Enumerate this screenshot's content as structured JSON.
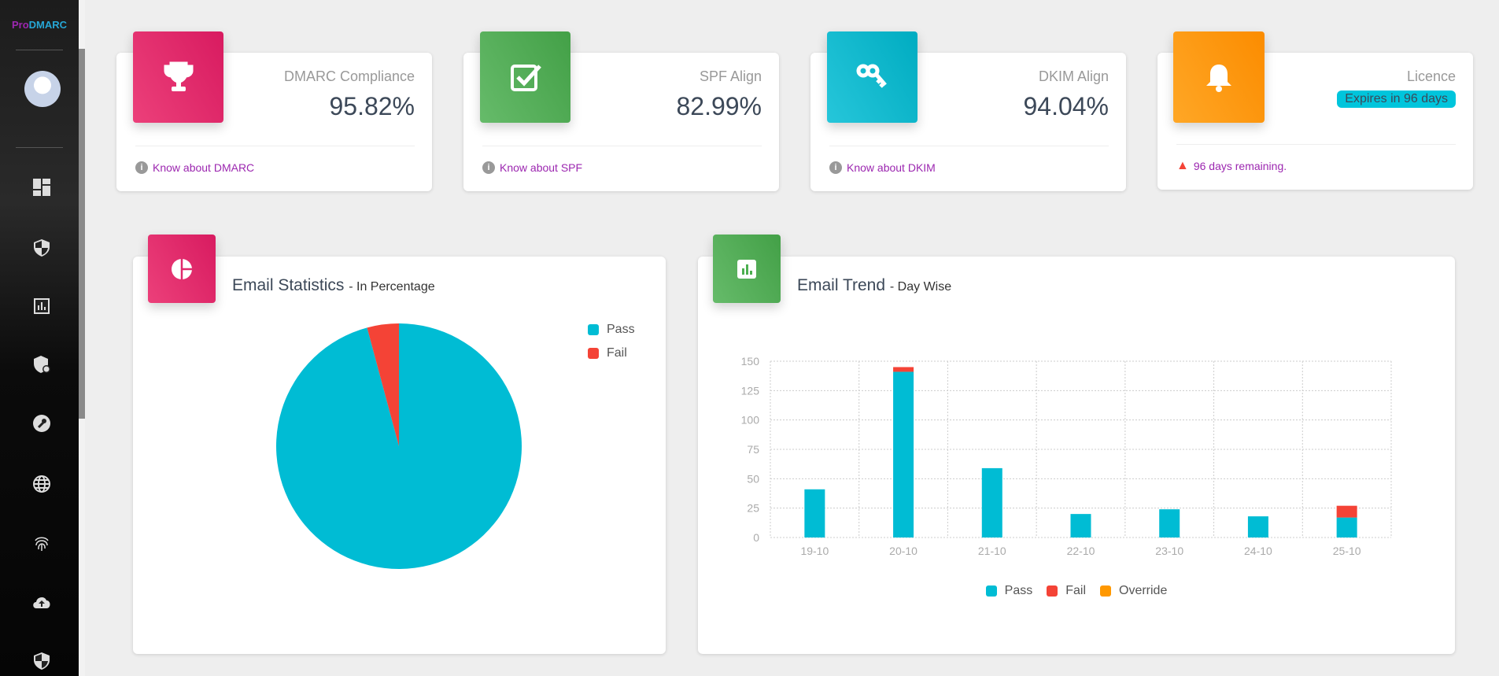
{
  "sidebar": {
    "logo_part1": "Pro",
    "logo_part2": "DMARC",
    "items": [
      "dashboard-icon",
      "shield-icon",
      "bar-chart-icon",
      "shield-user-icon",
      "wrench-icon",
      "globe-icon",
      "fingerprint-icon",
      "cloud-upload-icon",
      "shield-icon"
    ]
  },
  "cards": [
    {
      "label": "DMARC Compliance",
      "value": "95.82%",
      "link": "Know about DMARC",
      "color": "#e91e63",
      "icon": "trophy-icon"
    },
    {
      "label": "SPF Align",
      "value": "82.99%",
      "link": "Know about SPF",
      "color": "#4caf50",
      "icon": "check-box-icon"
    },
    {
      "label": "DKIM Align",
      "value": "94.04%",
      "link": "Know about DKIM",
      "color": "#00bcd4",
      "icon": "key-icon"
    },
    {
      "label": "Licence",
      "badge": "Expires in 96 days",
      "note": "96 days remaining.",
      "color": "#ff9800",
      "icon": "bell-icon"
    }
  ],
  "stats": {
    "title": "Email Statistics",
    "subtitle": "- In Percentage"
  },
  "trend": {
    "title": "Email Trend",
    "subtitle": "- Day Wise"
  },
  "chart_data": [
    {
      "type": "pie",
      "labels": [
        "Pass",
        "Fail"
      ],
      "values": [
        95.82,
        4.18
      ],
      "colors": [
        "#00bcd4",
        "#f44336"
      ],
      "legend": "top-right"
    },
    {
      "type": "bar",
      "stacked": true,
      "categories": [
        "19-10",
        "20-10",
        "21-10",
        "22-10",
        "23-10",
        "24-10",
        "25-10"
      ],
      "series": [
        {
          "name": "Pass",
          "color": "#00bcd4",
          "values": [
            41,
            141,
            59,
            20,
            24,
            18,
            17
          ]
        },
        {
          "name": "Fail",
          "color": "#f44336",
          "values": [
            0,
            4,
            0,
            0,
            0,
            0,
            10
          ]
        },
        {
          "name": "Override",
          "color": "#ff9800",
          "values": [
            0,
            0,
            0,
            0,
            0,
            0,
            0
          ]
        }
      ],
      "yticks": [
        "0",
        "25",
        "50",
        "75",
        "100",
        "125",
        "150"
      ],
      "ylim": [
        0,
        150
      ],
      "grid": true,
      "legend": "bottom"
    }
  ]
}
